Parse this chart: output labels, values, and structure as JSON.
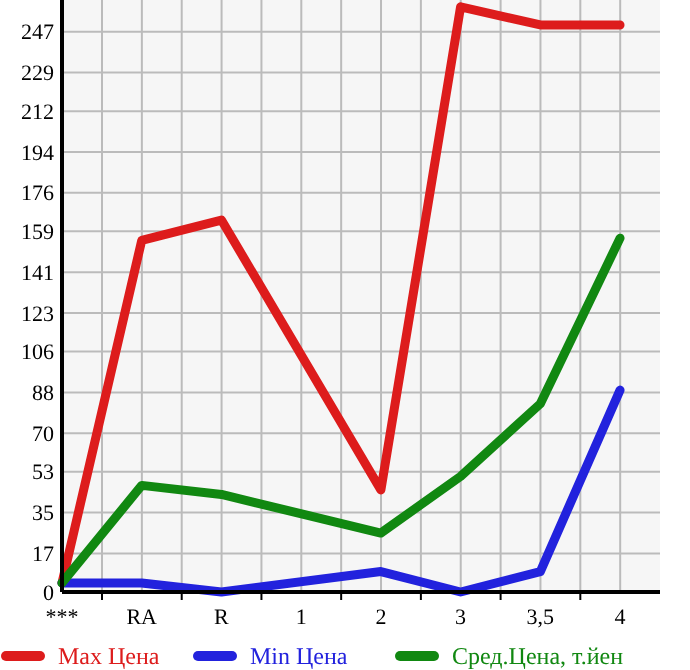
{
  "chart_data": {
    "type": "line",
    "categories": [
      "***",
      "RA",
      "R",
      "1",
      "2",
      "3",
      "3,5",
      "4"
    ],
    "series": [
      {
        "name": "Max Цена",
        "color": "#dd1c1c",
        "values": [
          4,
          155,
          164,
          null,
          45,
          258,
          250,
          250
        ]
      },
      {
        "name": "Min Цена",
        "color": "#2222dd",
        "values": [
          4,
          4,
          0,
          null,
          9,
          0,
          9,
          89
        ]
      },
      {
        "name": "Сред.Цена, т.йен",
        "color": "#118811",
        "values": [
          4,
          47,
          43,
          null,
          26,
          51,
          83,
          156
        ]
      }
    ],
    "ylim": [
      0,
      261
    ],
    "yticks": [
      0,
      17,
      35,
      53,
      70,
      88,
      106,
      123,
      141,
      159,
      176,
      194,
      212,
      229,
      247
    ],
    "grid": true,
    "legend": "bottom",
    "marker": "none",
    "line_style": "solid"
  }
}
